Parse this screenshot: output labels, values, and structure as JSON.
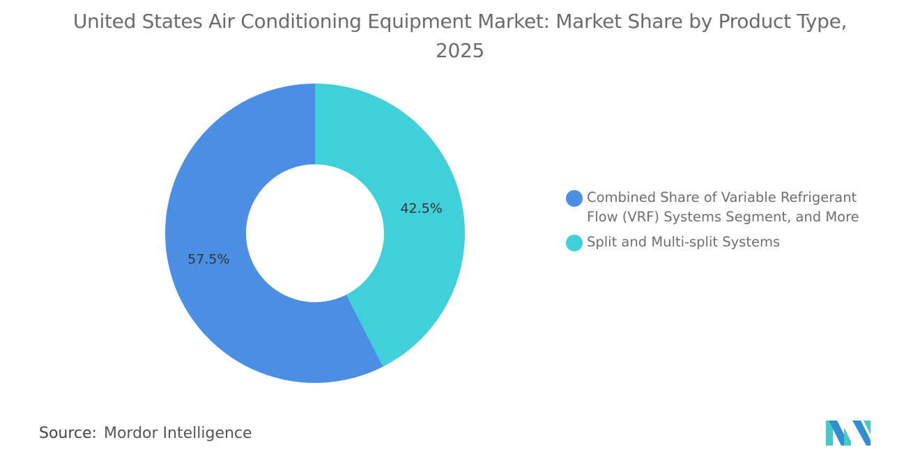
{
  "title": "United States Air Conditioning Equipment Market: Market Share by Product Type, 2025",
  "chart_data": {
    "type": "pie",
    "donut": true,
    "title": "United States Air Conditioning Equipment Market: Market Share by Product Type, 2025",
    "categories": [
      "Combined Share of Variable Refrigerant Flow (VRF) Systems Segment, and More",
      "Split and Multi-split Systems"
    ],
    "values": [
      57.5,
      42.5
    ],
    "data_labels": [
      "57.5%",
      "42.5%"
    ],
    "colors": [
      "#4a8fe3",
      "#40d0da"
    ],
    "legend_position": "right"
  },
  "source": {
    "label": "Source:",
    "value": "Mordor Intelligence"
  },
  "logo": {
    "text": "Mordor Intelligence",
    "colors": [
      "#2f8fd0",
      "#45c9c9"
    ]
  }
}
